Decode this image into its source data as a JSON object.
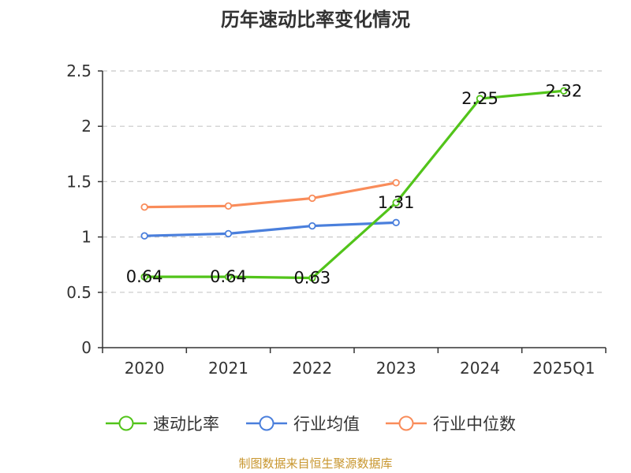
{
  "chart_data": {
    "type": "line",
    "title": "历年速动比率变化情况",
    "categories": [
      "2020",
      "2021",
      "2022",
      "2023",
      "2024",
      "2025Q1"
    ],
    "ylim": [
      0,
      2.5
    ],
    "yticks": [
      "0",
      "0.5",
      "1",
      "1.5",
      "2",
      "2.5"
    ],
    "grid": true,
    "legend_position": "bottom",
    "series": [
      {
        "name": "速动比率",
        "color": "#52c41a",
        "values": [
          0.64,
          0.64,
          0.63,
          1.31,
          2.25,
          2.32
        ],
        "labels": [
          "0.64",
          "0.64",
          "0.63",
          "1.31",
          "2.25",
          "2.32"
        ]
      },
      {
        "name": "行业均值",
        "color": "#4a7fdc",
        "values": [
          1.01,
          1.03,
          1.1,
          1.13,
          null,
          null
        ]
      },
      {
        "name": "行业中位数",
        "color": "#f98c5a",
        "values": [
          1.27,
          1.28,
          1.35,
          1.49,
          null,
          null
        ]
      }
    ]
  },
  "footer": {
    "source": "制图数据来自恒生聚源数据库"
  }
}
